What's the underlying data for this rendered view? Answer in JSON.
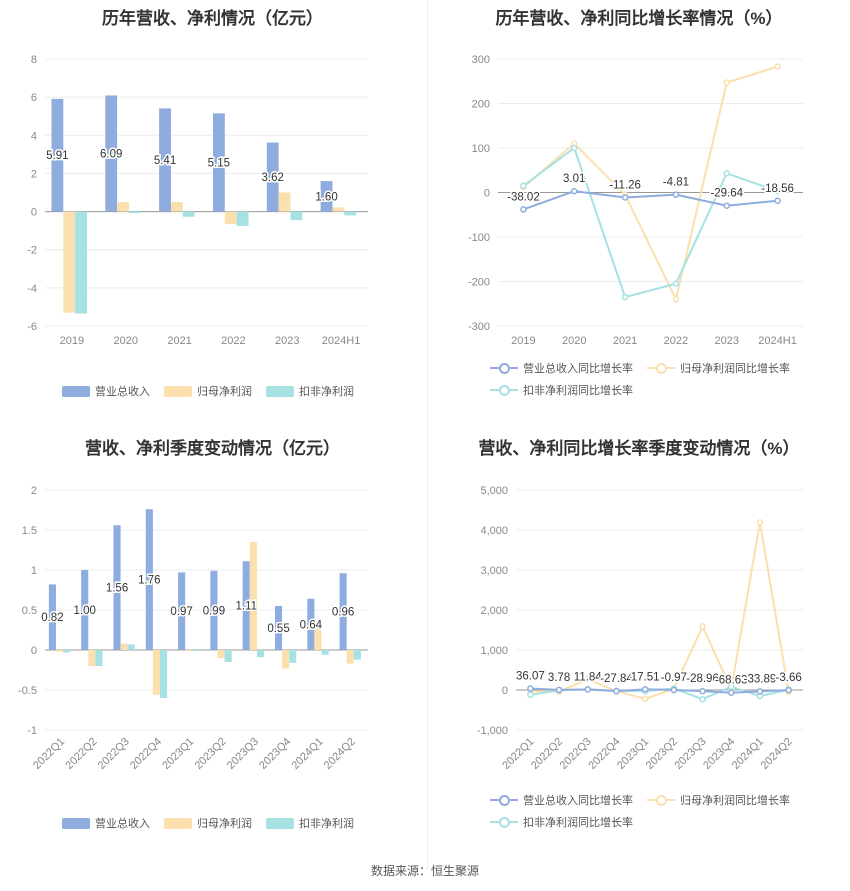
{
  "colors": {
    "revenue": "#8eadde",
    "net": "#fbe0ae",
    "deducted": "#a6e1e3",
    "grid": "#ececec",
    "axis": "#999999"
  },
  "footer": "数据来源：恒生聚源",
  "chart_data": [
    {
      "type": "bar",
      "title": "历年营收、净利情况（亿元）",
      "categories": [
        "2019",
        "2020",
        "2021",
        "2022",
        "2023",
        "2024H1"
      ],
      "ylim": [
        -6,
        8
      ],
      "yticks": [
        "8",
        "6",
        "4",
        "2",
        "0",
        "-2",
        "-4",
        "-6"
      ],
      "series": [
        {
          "name": "营业总收入",
          "values": [
            5.91,
            6.09,
            5.41,
            5.15,
            3.62,
            1.6
          ],
          "labels": [
            "5.91",
            "6.09",
            "5.41",
            "5.15",
            "3.62",
            "1.60"
          ]
        },
        {
          "name": "归母净利润",
          "values": [
            -5.3,
            0.5,
            0.5,
            -0.65,
            1.0,
            0.22
          ]
        },
        {
          "name": "扣非净利润",
          "values": [
            -5.35,
            -0.08,
            -0.27,
            -0.75,
            -0.45,
            -0.2
          ]
        }
      ]
    },
    {
      "type": "line",
      "title": "历年营收、净利同比增长率情况（%）",
      "categories": [
        "2019",
        "2020",
        "2021",
        "2022",
        "2023",
        "2024H1"
      ],
      "ylim": [
        -300,
        300
      ],
      "yticks": [
        "300",
        "200",
        "100",
        "0",
        "-100",
        "-200",
        "-300"
      ],
      "series": [
        {
          "name": "营业总收入同比增长率",
          "values": [
            -38.02,
            3.01,
            -11.26,
            -4.81,
            -29.64,
            -18.56
          ],
          "labels": [
            "-38.02",
            "3.01",
            "-11.26",
            "-4.81",
            "-29.64",
            "-18.56"
          ]
        },
        {
          "name": "归母净利润同比增长率",
          "values": [
            12,
            110,
            -5,
            -240,
            247,
            283
          ]
        },
        {
          "name": "扣非净利润同比增长率",
          "values": [
            15,
            100,
            -235,
            -205,
            43,
            3
          ]
        }
      ]
    },
    {
      "type": "bar",
      "title": "营收、净利季度变动情况（亿元）",
      "categories": [
        "2022Q1",
        "2022Q2",
        "2022Q3",
        "2022Q4",
        "2023Q1",
        "2023Q2",
        "2023Q3",
        "2023Q4",
        "2024Q1",
        "2024Q2"
      ],
      "ylim": [
        -1,
        2
      ],
      "yticks": [
        "2",
        "1.5",
        "1",
        "0.5",
        "0",
        "-0.5",
        "-1"
      ],
      "series": [
        {
          "name": "营业总收入",
          "values": [
            0.82,
            1.0,
            1.56,
            1.76,
            0.97,
            0.99,
            1.11,
            0.55,
            0.64,
            0.96
          ],
          "labels": [
            "0.82",
            "1.00",
            "1.56",
            "1.76",
            "0.97",
            "0.99",
            "1.11",
            "0.55",
            "0.64",
            "0.96"
          ]
        },
        {
          "name": "归母净利润",
          "values": [
            -0.02,
            -0.2,
            0.08,
            -0.56,
            -0.01,
            -0.1,
            1.35,
            -0.23,
            0.27,
            -0.17
          ]
        },
        {
          "name": "扣非净利润",
          "values": [
            -0.03,
            -0.2,
            0.07,
            -0.6,
            -0.01,
            -0.15,
            -0.09,
            -0.16,
            -0.06,
            -0.12
          ]
        }
      ]
    },
    {
      "type": "line",
      "title": "营收、净利同比增长率季度变动情况（%）",
      "categories": [
        "2022Q1",
        "2022Q2",
        "2022Q3",
        "2022Q4",
        "2023Q1",
        "2023Q2",
        "2023Q3",
        "2023Q4",
        "2024Q1",
        "2024Q2"
      ],
      "ylim": [
        -1000,
        5000
      ],
      "yticks": [
        "5,000",
        "4,000",
        "3,000",
        "2,000",
        "1,000",
        "0",
        "-1,000"
      ],
      "series": [
        {
          "name": "营业总收入同比增长率",
          "values": [
            36.07,
            3.78,
            11.84,
            -27.84,
            17.51,
            -0.97,
            -28.96,
            -68.63,
            -33.89,
            -3.66
          ],
          "labels": [
            "36.07",
            "3.78",
            "11.84",
            "-27.84",
            "17.51",
            "-0.97",
            "-28.96",
            "-68.63",
            "-33.89",
            "-3.66"
          ]
        },
        {
          "name": "归母净利润同比增长率",
          "values": [
            -30,
            -40,
            270,
            -30,
            -220,
            30,
            1590,
            20,
            4190,
            -50
          ]
        },
        {
          "name": "扣非净利润同比增长率",
          "values": [
            -120,
            -10,
            20,
            -20,
            -30,
            40,
            -230,
            80,
            -150,
            10
          ]
        }
      ]
    }
  ]
}
